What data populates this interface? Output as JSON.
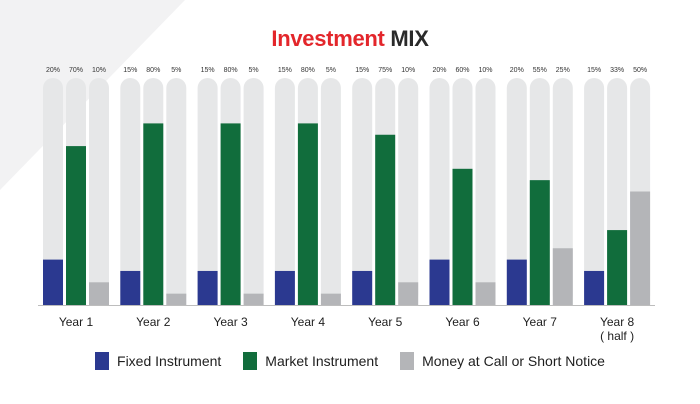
{
  "title": {
    "part1": "Investment",
    "part2": "MIX"
  },
  "colors": {
    "fixed": "#2b3990",
    "market": "#116d3c",
    "money": "#b4b5b8",
    "track": "#e6e7e8",
    "accent": "#e3262b"
  },
  "chart_data": {
    "type": "bar",
    "title": "Investment MIX",
    "ylim": [
      0,
      100
    ],
    "grid": false,
    "legend_position": "bottom",
    "categories": [
      "Year 1",
      "Year 2",
      "Year 3",
      "Year 4",
      "Year 5",
      "Year 6",
      "Year 7",
      "Year 8 ( half )"
    ],
    "series": [
      {
        "name": "Fixed Instrument",
        "color": "#2b3990",
        "values": [
          20,
          15,
          15,
          15,
          15,
          20,
          20,
          15
        ],
        "labels": [
          "20%",
          "15%",
          "15%",
          "15%",
          "15%",
          "20%",
          "20%",
          "15%"
        ]
      },
      {
        "name": "Market Instrument",
        "color": "#116d3c",
        "values": [
          70,
          80,
          80,
          80,
          75,
          60,
          55,
          33
        ],
        "labels": [
          "70%",
          "80%",
          "80%",
          "80%",
          "75%",
          "60%",
          "55%",
          "33%"
        ]
      },
      {
        "name": "Money at Call or Short Notice",
        "color": "#b4b5b8",
        "values": [
          10,
          5,
          5,
          5,
          10,
          10,
          25,
          50
        ],
        "labels": [
          "10%",
          "5%",
          "5%",
          "5%",
          "10%",
          "10%",
          "25%",
          "50%"
        ]
      }
    ]
  },
  "legend": [
    {
      "label": "Fixed Instrument",
      "color": "#2b3990"
    },
    {
      "label": "Market Instrument",
      "color": "#116d3c"
    },
    {
      "label": "Money at Call or Short Notice",
      "color": "#b4b5b8"
    }
  ]
}
